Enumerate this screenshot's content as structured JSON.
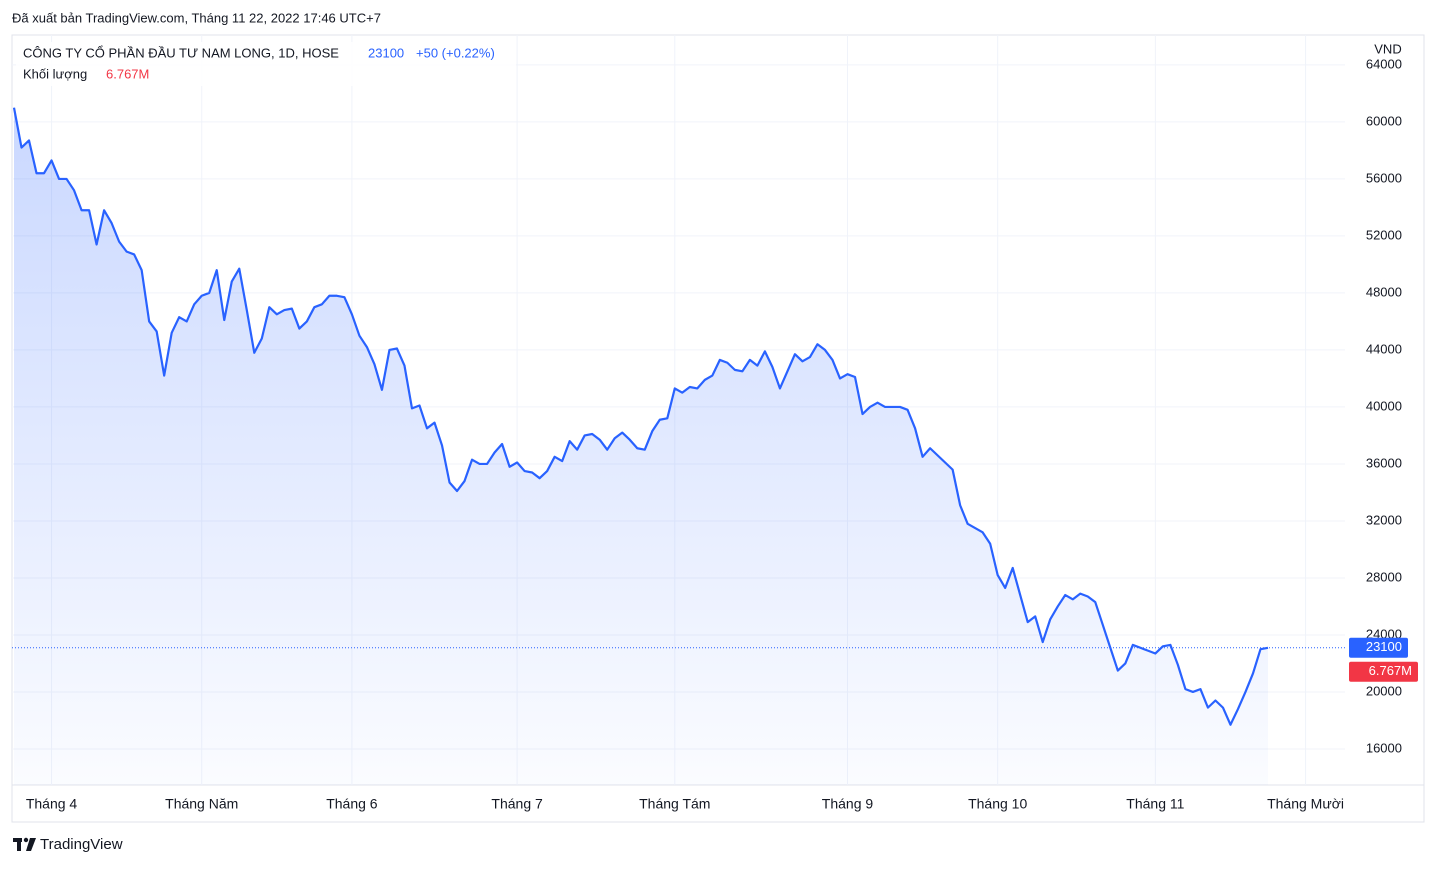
{
  "header": {
    "published": "Đã xuất bản TradingView.com, Tháng 11 22, 2022 17:46 UTC+7"
  },
  "legend": {
    "change": "+50 (+0.22%)",
    "volume_label": "Khối lượng",
    "volume": "6.767M"
  },
  "footer": {
    "brand": "TradingView"
  },
  "chart_data": {
    "type": "area",
    "currency": "VND",
    "categories": [
      null,
      null,
      null,
      null,
      null,
      "Tháng 4",
      null,
      null,
      null,
      null,
      null,
      null,
      null,
      null,
      null,
      null,
      null,
      null,
      null,
      null,
      null,
      null,
      null,
      null,
      null,
      "Tháng Năm",
      null,
      null,
      null,
      null,
      null,
      null,
      null,
      null,
      null,
      null,
      null,
      null,
      null,
      null,
      null,
      null,
      null,
      null,
      null,
      "Tháng 6",
      null,
      null,
      null,
      null,
      null,
      null,
      null,
      null,
      null,
      null,
      null,
      null,
      null,
      null,
      null,
      null,
      null,
      null,
      null,
      null,
      null,
      "Tháng 7",
      null,
      null,
      null,
      null,
      null,
      null,
      null,
      null,
      null,
      null,
      null,
      null,
      null,
      null,
      null,
      null,
      null,
      null,
      null,
      null,
      "Tháng Tám",
      null,
      null,
      null,
      null,
      null,
      null,
      null,
      null,
      null,
      null,
      null,
      null,
      null,
      null,
      null,
      null,
      null,
      null,
      null,
      null,
      null,
      null,
      "Tháng 9",
      null,
      null,
      null,
      null,
      null,
      null,
      null,
      null,
      null,
      null,
      null,
      null,
      null,
      null,
      null,
      null,
      null,
      null,
      null,
      "Tháng 10",
      null,
      null,
      null,
      null,
      null,
      null,
      null,
      null,
      null,
      null,
      null,
      null,
      null,
      null,
      null,
      null,
      null,
      null,
      null,
      null,
      "Tháng 11",
      null,
      null,
      null,
      null,
      null,
      null,
      null,
      null,
      null,
      null,
      null,
      null,
      null,
      null,
      null,
      null,
      null,
      null,
      null,
      "Tháng Mười"
    ],
    "series": [
      {
        "name": "CÔNG TY CỔ PHẦN ĐẦU TƯ NAM LONG, 1D, HOSE",
        "color": "#2962ff",
        "values": [
          61000,
          58200,
          58700,
          56400,
          56400,
          57300,
          56000,
          56000,
          55200,
          53800,
          53800,
          51400,
          53800,
          52900,
          51600,
          50900,
          50700,
          49600,
          46000,
          45300,
          42200,
          45200,
          46300,
          46000,
          47200,
          47800,
          48000,
          49600,
          46100,
          48800,
          49700,
          46800,
          43800,
          44800,
          47000,
          46500,
          46800,
          46900,
          45500,
          46000,
          47000,
          47200,
          47800,
          47800,
          47700,
          46500,
          45000,
          44200,
          43000,
          41200,
          44000,
          44100,
          42900,
          39900,
          40100,
          38500,
          38900,
          37300,
          34700,
          34100,
          34800,
          36300,
          36000,
          36000,
          36800,
          37400,
          35800,
          36100,
          35500,
          35400,
          35000,
          35500,
          36500,
          36200,
          37600,
          37000,
          38000,
          38100,
          37700,
          37000,
          37800,
          38200,
          37700,
          37100,
          37000,
          38300,
          39100,
          39200,
          41300,
          41000,
          41400,
          41300,
          41900,
          42200,
          43300,
          43100,
          42600,
          42500,
          43300,
          42900,
          43900,
          42800,
          41300,
          42500,
          43700,
          43200,
          43500,
          44400,
          44000,
          43300,
          42000,
          42300,
          42100,
          39500,
          40000,
          40300,
          40000,
          40000,
          40000,
          39800,
          38500,
          36500,
          37100,
          36600,
          36100,
          35600,
          33100,
          31800,
          31500,
          31200,
          30400,
          28200,
          27300,
          28700,
          26800,
          24900,
          25300,
          23500,
          25100,
          26000,
          26800,
          26500,
          26900,
          26700,
          26300,
          24700,
          23100,
          21500,
          22000,
          23300,
          23100,
          22900,
          22700,
          23200,
          23300,
          21900,
          20200,
          20000,
          20200,
          18900,
          19400,
          18900,
          17700,
          18800,
          20000,
          21300,
          23000,
          23100,
          null,
          null,
          null,
          null,
          null
        ]
      }
    ],
    "ylim": [
      13470,
      66100
    ],
    "yticks": [
      16000,
      20000,
      24000,
      28000,
      32000,
      36000,
      40000,
      44000,
      48000,
      52000,
      56000,
      60000,
      64000
    ],
    "grid": true
  }
}
